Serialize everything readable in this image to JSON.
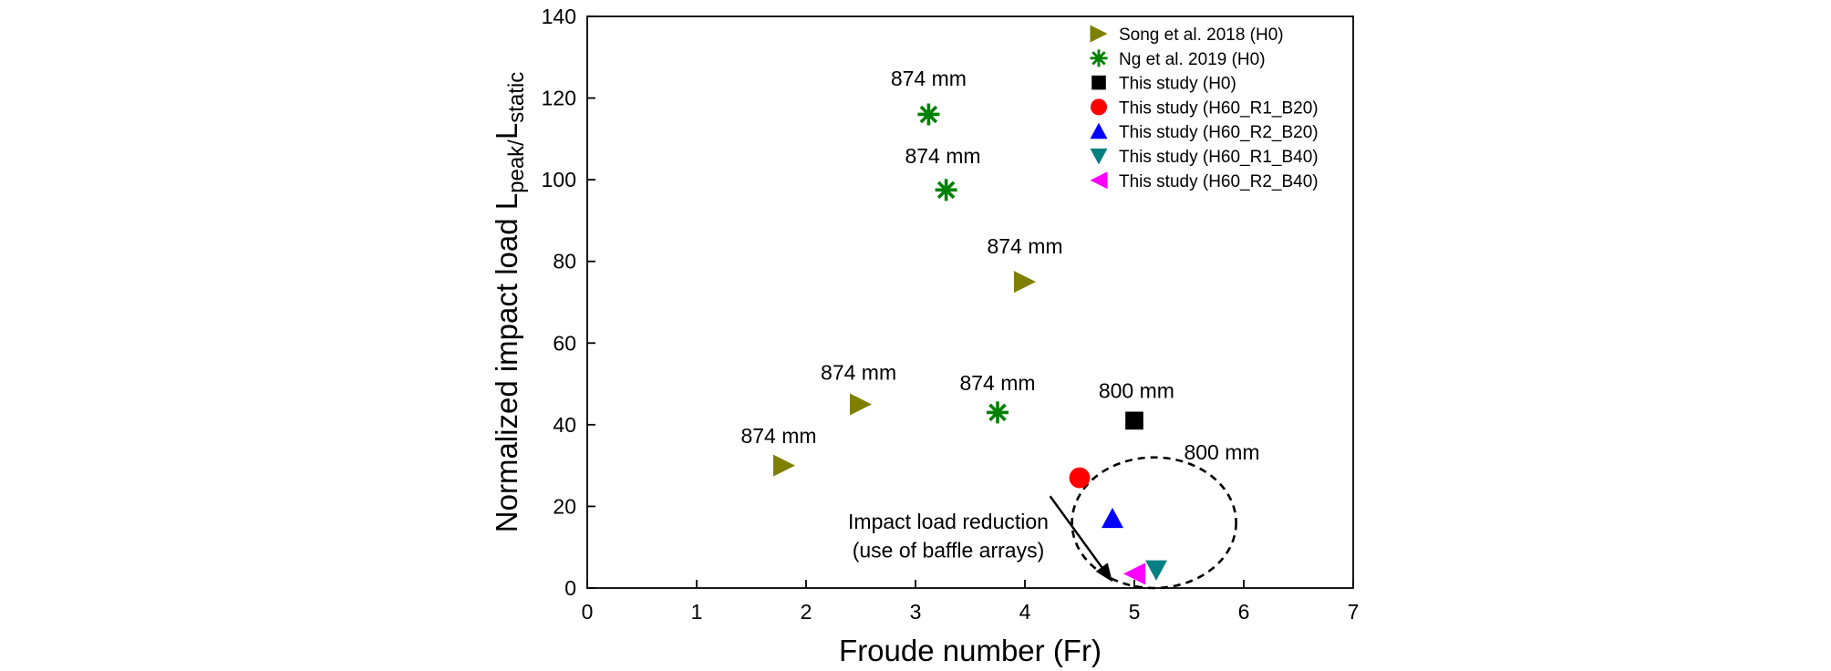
{
  "chart_data": {
    "type": "scatter",
    "xlabel": "Froude number (Fr)",
    "ylabel": "Normalized impact load L",
    "ylabel_sub": "peak/",
    "ylabel_main2": "L",
    "ylabel_sub2": "static",
    "xlim": [
      0,
      7
    ],
    "ylim": [
      0,
      140
    ],
    "xticks": [
      "0",
      "1",
      "2",
      "3",
      "4",
      "5",
      "6",
      "7"
    ],
    "yticks": [
      "0",
      "20",
      "40",
      "60",
      "80",
      "100",
      "120",
      "140"
    ],
    "grid": false,
    "legend_position": "top-right",
    "series": [
      {
        "name": "Song et al. 2018 (H0)",
        "marker": "triangle-right",
        "color": "#808000",
        "points": [
          {
            "x": 1.8,
            "y": 30
          },
          {
            "x": 2.5,
            "y": 45
          },
          {
            "x": 4.0,
            "y": 75
          }
        ]
      },
      {
        "name": "Ng et al. 2019 (H0)",
        "marker": "asterisk",
        "color": "#008000",
        "points": [
          {
            "x": 3.12,
            "y": 116
          },
          {
            "x": 3.28,
            "y": 97.5
          },
          {
            "x": 3.75,
            "y": 43
          }
        ]
      },
      {
        "name": "This study (H0)",
        "marker": "square",
        "color": "#000000",
        "points": [
          {
            "x": 5.0,
            "y": 41
          }
        ]
      },
      {
        "name": "This study (H60_R1_B20)",
        "marker": "circle",
        "color": "#ff0000",
        "points": [
          {
            "x": 4.5,
            "y": 27
          }
        ]
      },
      {
        "name": "This study (H60_R2_B20)",
        "marker": "triangle-up",
        "color": "#0000ff",
        "points": [
          {
            "x": 4.8,
            "y": 17
          }
        ]
      },
      {
        "name": "This study (H60_R1_B40)",
        "marker": "triangle-down",
        "color": "#008080",
        "points": [
          {
            "x": 5.2,
            "y": 4.5
          }
        ]
      },
      {
        "name": "This study (H60_R2_B40)",
        "marker": "triangle-left",
        "color": "#ff00ff",
        "points": [
          {
            "x": 5.0,
            "y": 3.5
          }
        ]
      }
    ],
    "annotations": [
      {
        "text": "874 mm",
        "x": 3.12,
        "y": 123
      },
      {
        "text": "874 mm",
        "x": 3.25,
        "y": 104
      },
      {
        "text": "874 mm",
        "x": 4.0,
        "y": 82
      },
      {
        "text": "874 mm",
        "x": 2.48,
        "y": 51
      },
      {
        "text": "874 mm",
        "x": 1.75,
        "y": 35.5
      },
      {
        "text": "874 mm",
        "x": 3.75,
        "y": 48.5
      },
      {
        "text": "800 mm",
        "x": 5.02,
        "y": 46.5
      },
      {
        "text": "800 mm",
        "x": 5.8,
        "y": 31.5
      },
      {
        "text": "Impact load reduction",
        "x": 3.3,
        "y": 14.5
      },
      {
        "text": "(use of baffle arrays)",
        "x": 3.3,
        "y": 7.5
      }
    ],
    "arrow": {
      "from": [
        4.23,
        22.5
      ],
      "to": [
        4.8,
        1.5
      ]
    },
    "ellipse": {
      "cx": 5.18,
      "cy": 16,
      "rx": 0.75,
      "ry": 16
    }
  }
}
